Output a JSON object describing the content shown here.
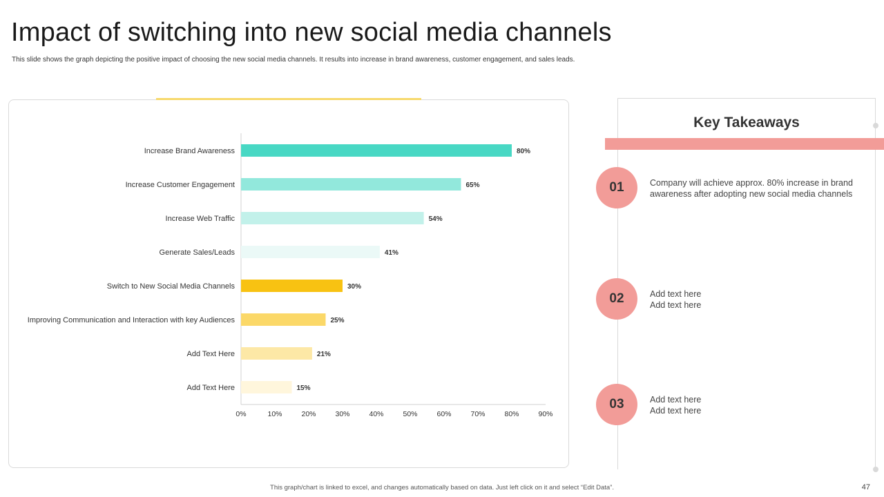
{
  "header": {
    "title": "Impact of switching into new social media channels",
    "subtitle": "This slide shows the graph depicting the positive impact of choosing the new social media channels. It results into increase in brand awareness, customer engagement, and sales leads."
  },
  "chart_data": {
    "type": "bar",
    "orientation": "horizontal",
    "categories": [
      "Increase Brand Awareness",
      "Increase Customer Engagement",
      "Increase Web Traffic",
      "Generate Sales/Leads",
      "Switch to New Social Media Channels",
      "Improving Communication and Interaction with key Audiences",
      "Add Text Here",
      "Add Text Here"
    ],
    "values": [
      80,
      65,
      54,
      41,
      30,
      25,
      21,
      15
    ],
    "value_labels": [
      "80%",
      "65%",
      "54%",
      "41%",
      "30%",
      "25%",
      "21%",
      "15%"
    ],
    "bar_colors": [
      "#48d8c4",
      "#92e8dc",
      "#c2f1ea",
      "#ebf9f7",
      "#f8c212",
      "#fbd868",
      "#fde8a6",
      "#fff6dc"
    ],
    "xlim": [
      0,
      90
    ],
    "xticks": [
      0,
      10,
      20,
      30,
      40,
      50,
      60,
      70,
      80,
      90
    ],
    "xtick_labels": [
      "0%",
      "10%",
      "20%",
      "30%",
      "40%",
      "50%",
      "60%",
      "70%",
      "80%",
      "90%"
    ],
    "title": "",
    "xlabel": "",
    "ylabel": "",
    "grid": false,
    "legend": false
  },
  "takeaways": {
    "title": "Key Takeaways",
    "items": [
      {
        "number": "01",
        "line1": "Company will achieve approx. 80% increase in brand",
        "line2": "awareness after adopting new social media channels"
      },
      {
        "number": "02",
        "line1": "Add text here",
        "line2": "Add text here"
      },
      {
        "number": "03",
        "line1": "Add text here",
        "line2": "Add text here"
      }
    ]
  },
  "footer": {
    "note": "This graph/chart is linked to excel, and changes automatically based on data. Just left click on it and select “Edit Data”.",
    "page_number": "47"
  },
  "colors": {
    "accent_yellow": "#f7d96b",
    "accent_coral": "#f29c98"
  }
}
